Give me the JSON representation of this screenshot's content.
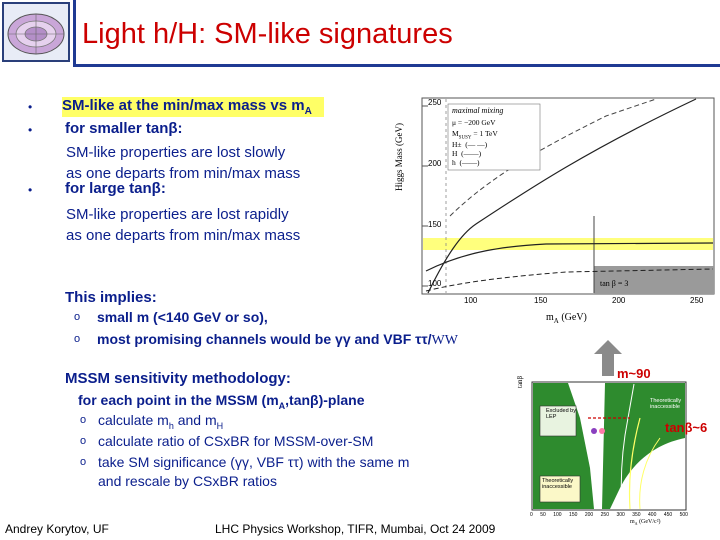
{
  "header": {
    "title": "Light h/H: SM-like signatures"
  },
  "bullets": {
    "b1": "SM-like at the min/max mass vs m",
    "b1_sub": "A",
    "b2": "for smaller tanβ:",
    "b2_line1": "SM-like properties are lost slowly",
    "b2_line2": "as one departs from min/max mass",
    "b3": "for large tanβ:",
    "b3_line1": "SM-like properties are lost rapidly",
    "b3_line2": "as one departs from min/max mass"
  },
  "implies": {
    "heading": "This implies:",
    "item1": "small m (<140 GeV or so),",
    "item2_pre": "most promising channels would be γγ and VBF ττ/",
    "item2_ww": "WW"
  },
  "method": {
    "heading": "MSSM sensitivity methodology:",
    "intro": "for each point in the MSSM (m",
    "intro_sub": "A",
    "intro_end": ",tanβ)-plane",
    "step1_pre": "calculate m",
    "step1_sub1": "h",
    "step1_mid": " and m",
    "step1_sub2": "H",
    "step2": "calculate ratio of CSxBR for MSSM-over-SM",
    "step3": "take SM significance (γγ, VBF ττ) with the same m",
    "step3b": "and rescale by CSxBR ratios"
  },
  "plot1": {
    "ylabel": "Higgs Mass (GeV)",
    "xlabel": "m",
    "xlabel_sub": "A",
    "xlabel_unit": "(GeV)",
    "yticks": [
      "250",
      "200",
      "150",
      "100"
    ],
    "xticks": [
      "100",
      "150",
      "200",
      "250"
    ],
    "legend_title": "maximal mixing",
    "legend_mu": "μ = −200 GeV",
    "legend_msusy": "M",
    "legend_msusy_sub": "SUSY",
    "legend_msusy_val": "= 1 TeV",
    "legend_entries": [
      "H±",
      "H",
      "h"
    ],
    "legend_styles": [
      "(— —)",
      "(——)",
      "(——)"
    ],
    "tan_label": "tan β = 3"
  },
  "plot2": {
    "ylabel": "tanβ",
    "xlabel": "m",
    "xlabel_sub": "A",
    "xlabel_unit": "(GeV/c²)",
    "xticks": [
      "0",
      "50",
      "100",
      "150",
      "200",
      "250",
      "300",
      "350",
      "400",
      "450",
      "500"
    ],
    "region1": "Excluded by LEP",
    "region2": "Theoretically inaccessible",
    "region3": "Theoretically inaccessible"
  },
  "annotations": {
    "m90": "m~90",
    "tanb6": "tanβ~6"
  },
  "footer": {
    "author": "Andrey Korytov, UF",
    "event": "LHC Physics Workshop, TIFR, Mumbai, Oct 24 2009"
  },
  "colors": {
    "title": "#cc0000",
    "bullet_text": "#0a1e8c",
    "highlight": "#ffff66",
    "rule": "#1f3a93",
    "arrow": "#8a8a8a"
  }
}
